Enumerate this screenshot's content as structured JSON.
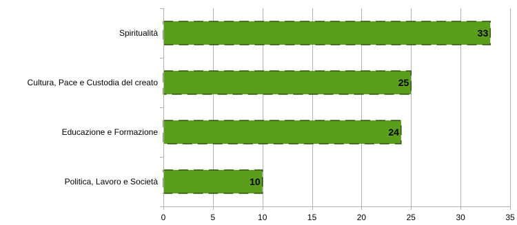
{
  "chart_data": {
    "type": "bar",
    "orientation": "horizontal",
    "title": "",
    "xlabel": "",
    "ylabel": "",
    "categories": [
      "Spiritualità",
      "Cultura, Pace e Custodia del creato",
      "Educazione e Formazione",
      "Politica, Lavoro e Società"
    ],
    "values": [
      33,
      25,
      24,
      10
    ],
    "xlim": [
      0,
      35
    ],
    "xticks": [
      0,
      5,
      10,
      15,
      20,
      25,
      30,
      35
    ],
    "grid": "vertical-major",
    "legend": "none",
    "colors": {
      "bar": "#5a9e1c",
      "bar_edge": "#1f3d00",
      "axis": "#b3b3b3",
      "grid": "#b3b3b3"
    }
  }
}
